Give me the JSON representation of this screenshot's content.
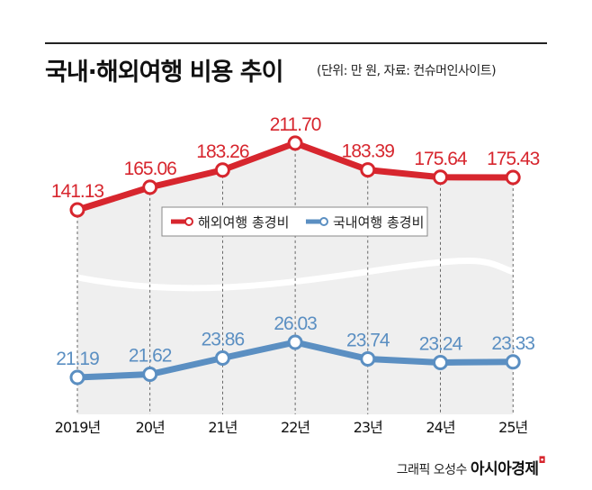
{
  "chart_data": {
    "type": "line",
    "title": "국내·해외여행 비용 추이",
    "subtitle": "(단위: 만 원, 자료: 컨슈머인사이트)",
    "categories": [
      "2019년",
      "20년",
      "21년",
      "22년",
      "23년",
      "24년",
      "25년"
    ],
    "series": [
      {
        "name": "해외여행 총경비",
        "color": "#d7262e",
        "values": [
          141.13,
          165.06,
          183.26,
          211.7,
          183.39,
          175.64,
          175.43
        ],
        "labels": [
          "141.13",
          "165.06",
          "183.26",
          "211.70",
          "183.39",
          "175.64",
          "175.43"
        ]
      },
      {
        "name": "국내여행 총경비",
        "color": "#5b8fc2",
        "values": [
          21.19,
          21.62,
          23.86,
          26.03,
          23.74,
          23.24,
          23.33
        ],
        "labels": [
          "21.19",
          "21.62",
          "23.86",
          "26.03",
          "23.74",
          "23.24",
          "23.33"
        ]
      }
    ],
    "legend": "center",
    "axis_break": true,
    "grid": false
  },
  "credit": {
    "text": "그래픽 오성수",
    "brand": "아시아경제",
    "mark": "ㅁ"
  }
}
